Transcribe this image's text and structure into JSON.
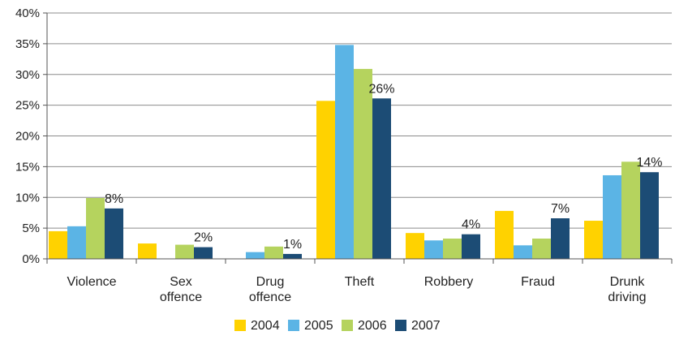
{
  "chart_data": {
    "type": "bar",
    "categories": [
      [
        "Violence"
      ],
      [
        "Sex",
        "offence"
      ],
      [
        "Drug",
        "offence"
      ],
      [
        "Theft"
      ],
      [
        "Robbery"
      ],
      [
        "Fraud"
      ],
      [
        "Drunk",
        "driving"
      ]
    ],
    "series": [
      {
        "name": "2004",
        "color": "#FFD200",
        "values": [
          4.5,
          2.5,
          0,
          25.7,
          4.2,
          7.8,
          6.2
        ]
      },
      {
        "name": "2005",
        "color": "#5BB4E5",
        "values": [
          5.3,
          0,
          1.1,
          34.8,
          3.0,
          2.2,
          13.6
        ]
      },
      {
        "name": "2006",
        "color": "#B5D35E",
        "values": [
          9.9,
          2.3,
          2.0,
          30.9,
          3.3,
          3.3,
          15.8
        ]
      },
      {
        "name": "2007",
        "color": "#1C4C75",
        "values": [
          8.2,
          1.9,
          0.8,
          26.1,
          4.0,
          6.6,
          14.1
        ]
      }
    ],
    "data_labels": {
      "series": "2007",
      "labels": [
        "8%",
        "2%",
        "1%",
        "26%",
        "4%",
        "7%",
        "14%"
      ]
    },
    "y_ticks": [
      {
        "value": 0,
        "label": "0%"
      },
      {
        "value": 5,
        "label": "5%"
      },
      {
        "value": 10,
        "label": "10%"
      },
      {
        "value": 15,
        "label": "15%"
      },
      {
        "value": 20,
        "label": "20%"
      },
      {
        "value": 25,
        "label": "25%"
      },
      {
        "value": 30,
        "label": "30%"
      },
      {
        "value": 35,
        "label": "35%"
      },
      {
        "value": 40,
        "label": "40%"
      }
    ],
    "ylim": [
      0,
      40
    ],
    "grid": true,
    "legend_position": "bottom"
  }
}
